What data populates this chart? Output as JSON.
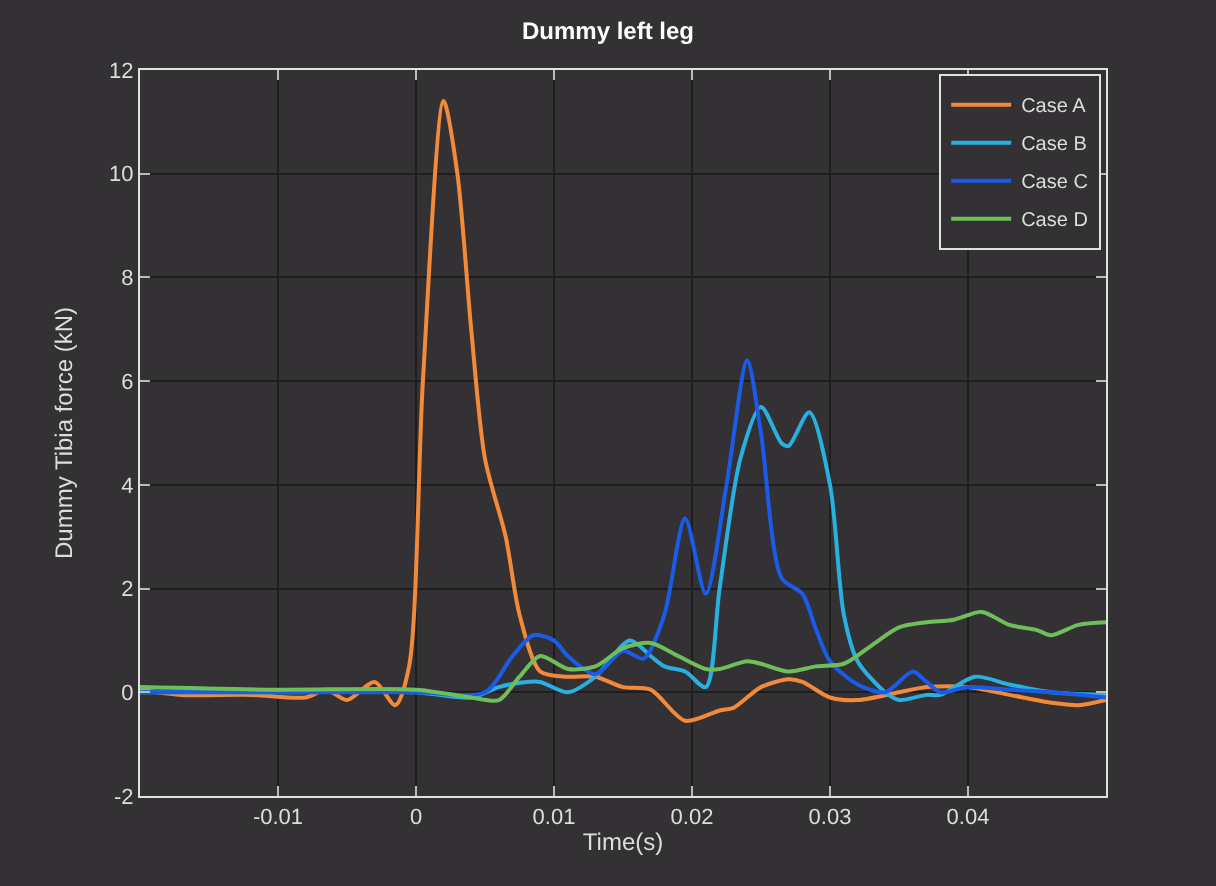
{
  "chart_data": {
    "type": "line",
    "title": "Dummy left leg",
    "xlabel": "Time(s)",
    "ylabel": "Dummy Tibia force (kN)",
    "xlim": [
      -0.02,
      0.05
    ],
    "xticks": [
      -0.01,
      0,
      0.01,
      0.02,
      0.03,
      0.04
    ],
    "ylim": [
      -2,
      12
    ],
    "yticks": [
      -2,
      0,
      2,
      4,
      6,
      8,
      10,
      12
    ],
    "grid": true,
    "legend": "top right",
    "line_style": "solid",
    "series": [
      {
        "name": "Case A",
        "color": "#f28a3c",
        "x": [
          -0.02,
          -0.017,
          -0.012,
          -0.008,
          -0.0065,
          -0.005,
          -0.003,
          -0.0015,
          -0.0005,
          0.0005,
          0.002,
          0.003,
          0.004,
          0.005,
          0.0065,
          0.0075,
          0.009,
          0.011,
          0.013,
          0.015,
          0.017,
          0.0195,
          0.022,
          0.023,
          0.025,
          0.027,
          0.028,
          0.03,
          0.032,
          0.035,
          0.037,
          0.04,
          0.043,
          0.046,
          0.048,
          0.05
        ],
        "values": [
          0.05,
          -0.05,
          -0.05,
          -0.1,
          0.05,
          -0.15,
          0.2,
          -0.25,
          0.5,
          6,
          11.4,
          10,
          7,
          4.5,
          3,
          1.5,
          0.4,
          0.3,
          0.3,
          0.1,
          0.05,
          -0.55,
          -0.35,
          -0.3,
          0.1,
          0.25,
          0.2,
          -0.1,
          -0.15,
          0,
          0.1,
          0.1,
          -0.05,
          -0.2,
          -0.25,
          -0.15
        ]
      },
      {
        "name": "Case B",
        "color": "#2ab0e0",
        "x": [
          -0.02,
          -0.01,
          0,
          0.004,
          0.006,
          0.008,
          0.009,
          0.011,
          0.013,
          0.0155,
          0.017,
          0.018,
          0.0195,
          0.021,
          0.022,
          0.0235,
          0.025,
          0.0265,
          0.027,
          0.0285,
          0.03,
          0.031,
          0.032,
          0.034,
          0.035,
          0.037,
          0.038,
          0.0405,
          0.043,
          0.046,
          0.05
        ],
        "values": [
          0,
          0,
          0,
          -0.1,
          0.1,
          0.2,
          0.2,
          0,
          0.3,
          1.0,
          0.7,
          0.5,
          0.4,
          0.1,
          2,
          4.5,
          5.5,
          4.8,
          4.75,
          5.4,
          4,
          1.5,
          0.6,
          0,
          -0.15,
          -0.05,
          -0.05,
          0.3,
          0.15,
          0,
          -0.05
        ]
      },
      {
        "name": "Case C",
        "color": "#1a5ce8",
        "x": [
          -0.02,
          -0.01,
          0,
          0.005,
          0.007,
          0.0085,
          0.01,
          0.011,
          0.013,
          0.015,
          0.0165,
          0.018,
          0.0195,
          0.021,
          0.0225,
          0.024,
          0.025,
          0.0265,
          0.028,
          0.029,
          0.03,
          0.032,
          0.034,
          0.036,
          0.037,
          0.038,
          0.04,
          0.043,
          0.046,
          0.05
        ],
        "values": [
          0,
          0,
          0,
          0,
          0.7,
          1.1,
          1.0,
          0.7,
          0.35,
          0.8,
          0.65,
          1.5,
          3.35,
          1.9,
          4,
          6.4,
          5,
          2.2,
          1.9,
          1.2,
          0.6,
          0.15,
          0,
          0.4,
          0.2,
          0,
          0.1,
          0.05,
          0,
          -0.1
        ]
      },
      {
        "name": "Case D",
        "color": "#6ebf5a",
        "x": [
          -0.02,
          -0.01,
          0,
          0.004,
          0.006,
          0.0075,
          0.009,
          0.011,
          0.013,
          0.015,
          0.017,
          0.019,
          0.021,
          0.022,
          0.024,
          0.025,
          0.027,
          0.029,
          0.031,
          0.033,
          0.035,
          0.037,
          0.039,
          0.041,
          0.043,
          0.045,
          0.046,
          0.048,
          0.05
        ],
        "values": [
          0.1,
          0.05,
          0.05,
          -0.1,
          -0.15,
          0.3,
          0.7,
          0.45,
          0.5,
          0.85,
          0.95,
          0.7,
          0.45,
          0.45,
          0.6,
          0.55,
          0.4,
          0.5,
          0.55,
          0.9,
          1.25,
          1.35,
          1.4,
          1.55,
          1.3,
          1.2,
          1.1,
          1.3,
          1.35
        ]
      }
    ]
  }
}
